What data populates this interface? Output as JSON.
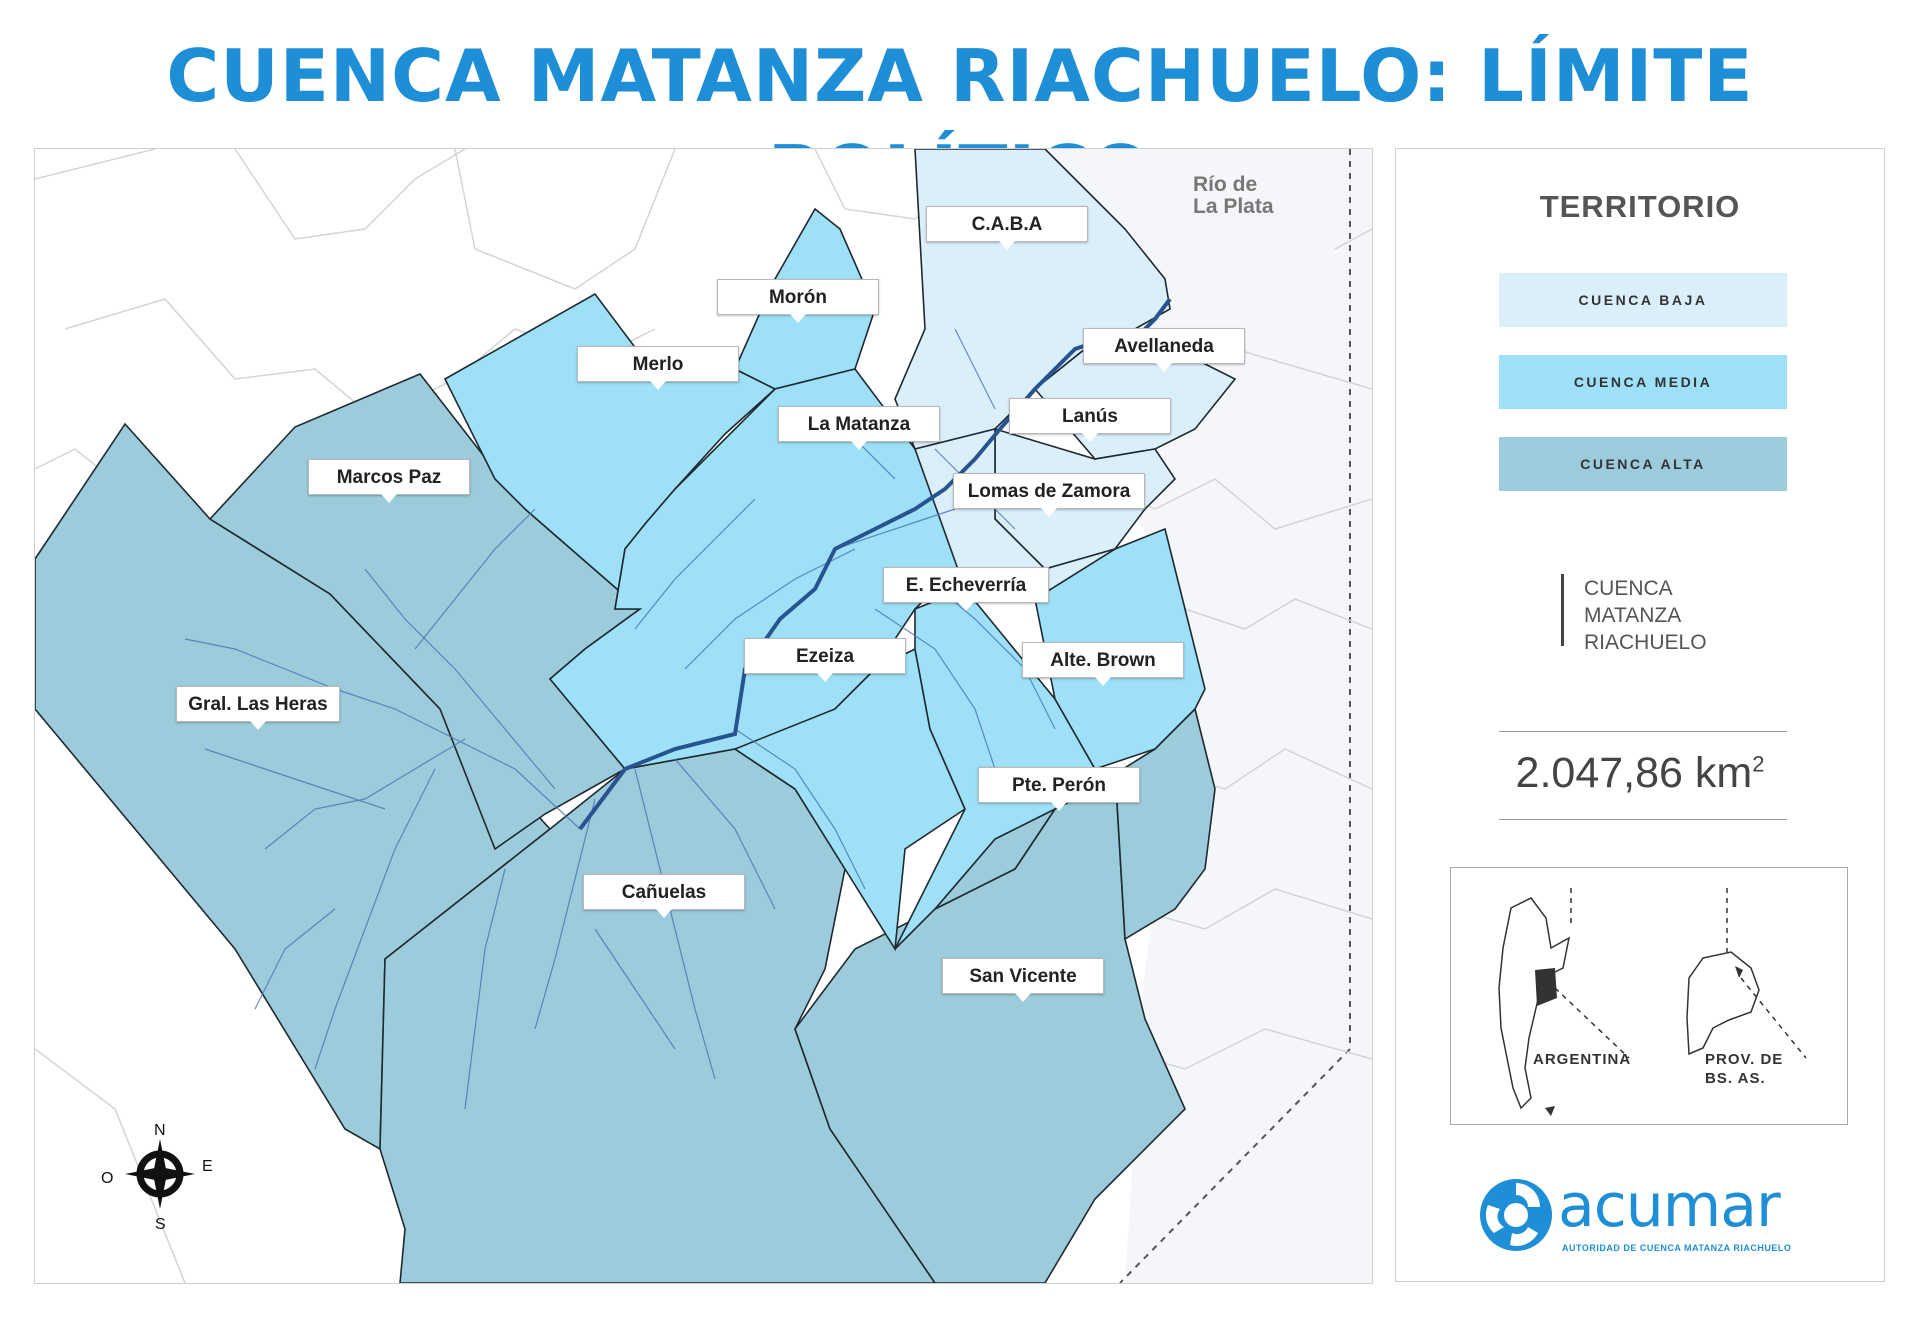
{
  "title": "CUENCA MATANZA RIACHUELO: LÍMITE POLÍTICO",
  "map": {
    "river_label": [
      "Río de",
      "La Plata"
    ],
    "municipalities": [
      {
        "name": "C.A.B.A",
        "zone": "baja"
      },
      {
        "name": "Morón",
        "zone": "media"
      },
      {
        "name": "Merlo",
        "zone": "media"
      },
      {
        "name": "Avellaneda",
        "zone": "baja"
      },
      {
        "name": "Lanús",
        "zone": "baja"
      },
      {
        "name": "La Matanza",
        "zone": "media"
      },
      {
        "name": "Marcos Paz",
        "zone": "alta"
      },
      {
        "name": "Lomas de Zamora",
        "zone": "baja"
      },
      {
        "name": "E. Echeverría",
        "zone": "media"
      },
      {
        "name": "Ezeiza",
        "zone": "media"
      },
      {
        "name": "Alte. Brown",
        "zone": "media"
      },
      {
        "name": "Gral. Las Heras",
        "zone": "alta"
      },
      {
        "name": "Pte. Perón",
        "zone": "alta"
      },
      {
        "name": "Cañuelas",
        "zone": "alta"
      },
      {
        "name": "San Vicente",
        "zone": "alta"
      }
    ],
    "compass": {
      "n": "N",
      "s": "S",
      "e": "E",
      "o": "O"
    }
  },
  "legend": {
    "title": "TERRITORIO",
    "items": [
      {
        "label": "CUENCA BAJA",
        "color": "#dbeffb"
      },
      {
        "label": "CUENCA MEDIA",
        "color": "#9de0f7"
      },
      {
        "label": "CUENCA ALTA",
        "color": "#9ccbdb"
      }
    ],
    "basin_name_lines": [
      "CUENCA",
      "MATANZA",
      "RIACHUELO"
    ],
    "area_value": "2.047,86 km",
    "area_exp": "2",
    "inset_labels": {
      "argentina": "ARGENTINA",
      "prov": [
        "PROV. DE",
        "BS. AS."
      ]
    }
  },
  "logo": {
    "word": "acumar",
    "subtitle": "AUTORIDAD DE CUENCA MATANZA RIACHUELO"
  },
  "colors": {
    "title": "#1e8fd6",
    "river": "#27548f",
    "tributary": "#4d78b8"
  }
}
